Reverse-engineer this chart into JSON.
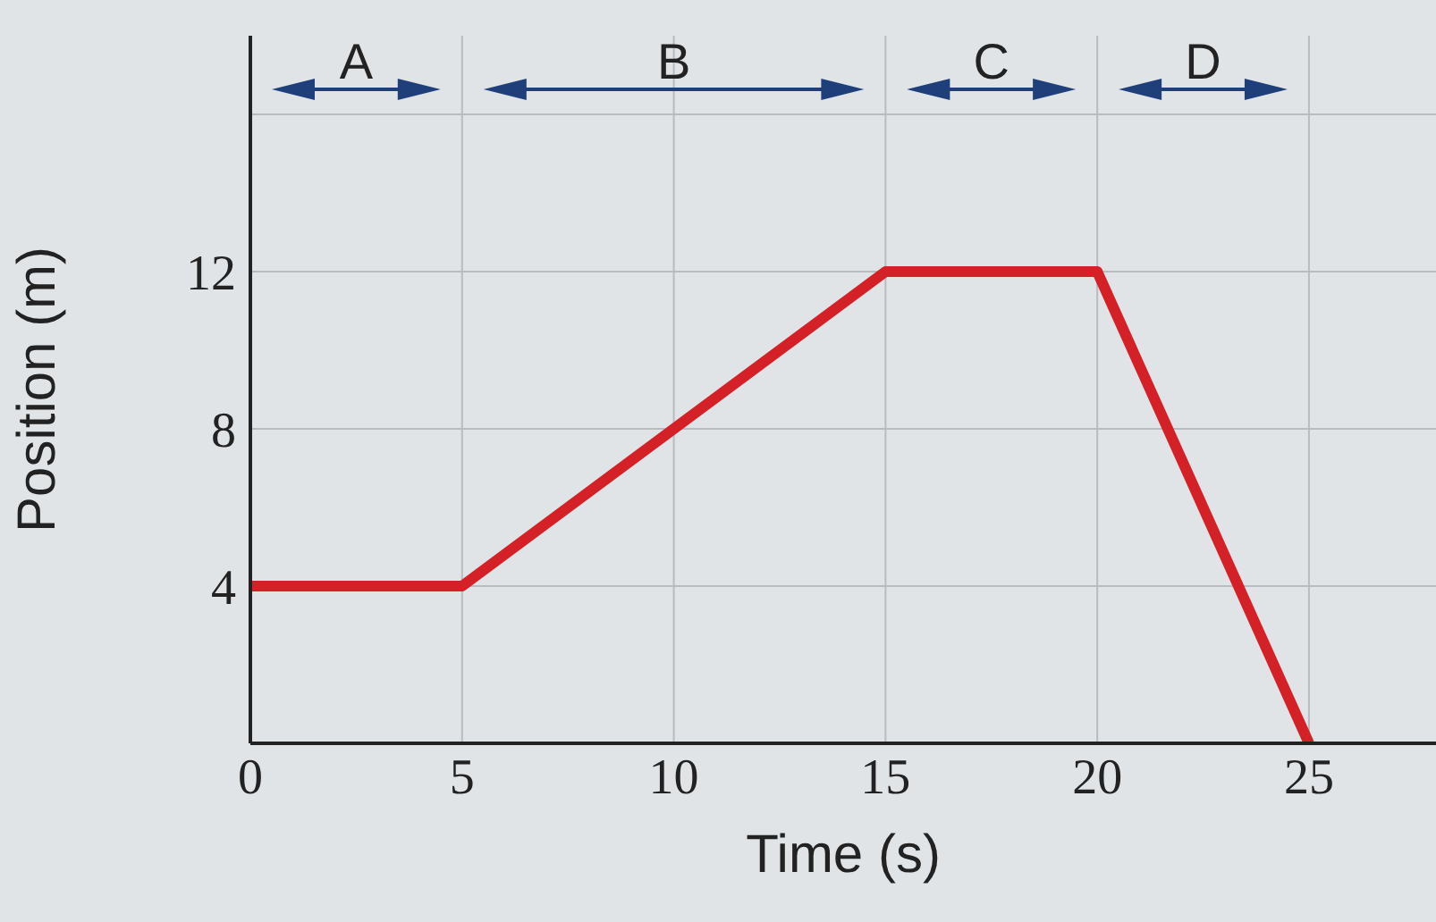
{
  "chart_data": {
    "type": "line",
    "xlabel": "Time (s)",
    "ylabel": "Position (m)",
    "x": [
      0,
      5,
      15,
      20,
      25
    ],
    "series": [
      {
        "color": "#d42027",
        "values": [
          4,
          4,
          12,
          12,
          0
        ]
      }
    ],
    "xlim": [
      0,
      28
    ],
    "ylim": [
      0,
      18
    ],
    "xticks": [
      0,
      5,
      10,
      15,
      20,
      25
    ],
    "yticks": [
      4,
      8,
      12,
      {
        "value": 16,
        "label": null
      }
    ],
    "grid": true,
    "marker": "none",
    "line_style": "solid",
    "annotations": [
      "A",
      "B",
      "C",
      "D"
    ]
  }
}
